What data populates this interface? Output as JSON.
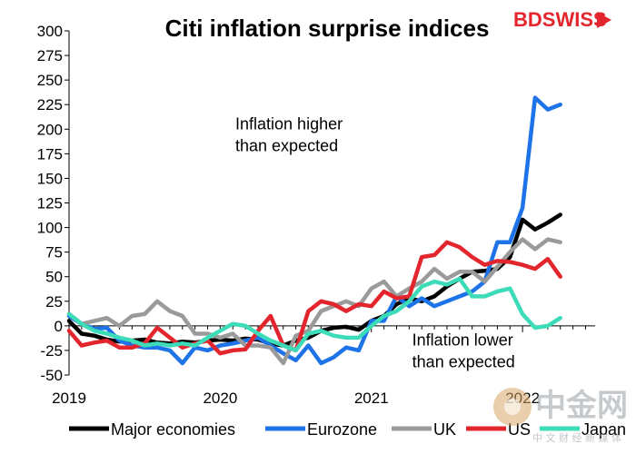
{
  "brand": {
    "logo_text": "BDSWISS",
    "watermark_main": "中金网",
    "watermark_sub": "中 文 财 经 新 媒 体"
  },
  "chart_data": {
    "type": "line",
    "title": "Citi inflation surprise indices",
    "xlabel": "",
    "ylabel": "",
    "ylim": [
      -50,
      300
    ],
    "yticks": [
      300,
      275,
      250,
      225,
      200,
      175,
      150,
      125,
      100,
      75,
      50,
      25,
      0,
      -25,
      -50
    ],
    "xlim": [
      2019.0,
      2022.48
    ],
    "xticks": [
      {
        "value": 2019,
        "label": "2019"
      },
      {
        "value": 2020,
        "label": "2020"
      },
      {
        "value": 2021,
        "label": "2021"
      },
      {
        "value": 2022,
        "label": "2022"
      }
    ],
    "grid": false,
    "annotations": [
      {
        "lines": [
          "Inflation higher",
          "than expected"
        ],
        "x": 2020.1,
        "y": 200
      },
      {
        "lines": [
          "Inflation lower",
          "than expected"
        ],
        "x": 2021.27,
        "y": -20
      }
    ],
    "legend_position": "bottom",
    "series": [
      {
        "name": "Major economies",
        "color": "#000000",
        "x": [
          2019.0,
          2019.083,
          2019.167,
          2019.25,
          2019.333,
          2019.417,
          2019.5,
          2019.583,
          2019.667,
          2019.75,
          2019.833,
          2019.917,
          2020.0,
          2020.083,
          2020.167,
          2020.25,
          2020.333,
          2020.417,
          2020.5,
          2020.583,
          2020.667,
          2020.75,
          2020.833,
          2020.917,
          2021.0,
          2021.083,
          2021.167,
          2021.25,
          2021.333,
          2021.417,
          2021.5,
          2021.583,
          2021.667,
          2021.75,
          2021.833,
          2021.917,
          2022.0,
          2022.083,
          2022.167,
          2022.25
        ],
        "values": [
          5,
          -8,
          -10,
          -14,
          -16,
          -15,
          -14,
          -17,
          -18,
          -16,
          -17,
          -15,
          -14,
          -15,
          -13,
          -14,
          -18,
          -20,
          -15,
          -12,
          -5,
          -2,
          -1,
          -4,
          5,
          10,
          22,
          28,
          25,
          30,
          40,
          48,
          55,
          56,
          58,
          70,
          108,
          98,
          105,
          113
        ]
      },
      {
        "name": "Eurozone",
        "color": "#1e73e8",
        "x": [
          2019.0,
          2019.083,
          2019.167,
          2019.25,
          2019.333,
          2019.417,
          2019.5,
          2019.583,
          2019.667,
          2019.75,
          2019.833,
          2019.917,
          2020.0,
          2020.083,
          2020.167,
          2020.25,
          2020.333,
          2020.417,
          2020.5,
          2020.583,
          2020.667,
          2020.75,
          2020.833,
          2020.917,
          2021.0,
          2021.083,
          2021.167,
          2021.25,
          2021.333,
          2021.417,
          2021.5,
          2021.583,
          2021.667,
          2021.75,
          2021.833,
          2021.917,
          2022.0,
          2022.083,
          2022.167,
          2022.25
        ],
        "values": [
          10,
          2,
          -3,
          -2,
          -15,
          -20,
          -22,
          -22,
          -25,
          -38,
          -22,
          -25,
          -20,
          -18,
          -15,
          -12,
          -20,
          -28,
          -35,
          -20,
          -38,
          -32,
          -22,
          -25,
          5,
          5,
          30,
          20,
          28,
          20,
          25,
          30,
          35,
          45,
          85,
          85,
          120,
          232,
          220,
          225
        ]
      },
      {
        "name": "UK",
        "color": "#9a9a9a",
        "x": [
          2019.0,
          2019.083,
          2019.167,
          2019.25,
          2019.333,
          2019.417,
          2019.5,
          2019.583,
          2019.667,
          2019.75,
          2019.833,
          2019.917,
          2020.0,
          2020.083,
          2020.167,
          2020.25,
          2020.333,
          2020.417,
          2020.5,
          2020.583,
          2020.667,
          2020.75,
          2020.833,
          2020.917,
          2021.0,
          2021.083,
          2021.167,
          2021.25,
          2021.333,
          2021.417,
          2021.5,
          2021.583,
          2021.667,
          2021.75,
          2021.833,
          2021.917,
          2022.0,
          2022.083,
          2022.167,
          2022.25
        ],
        "values": [
          12,
          2,
          5,
          8,
          0,
          10,
          12,
          25,
          15,
          10,
          -8,
          -8,
          -12,
          -8,
          -20,
          -20,
          -22,
          -38,
          -10,
          -5,
          15,
          20,
          25,
          20,
          38,
          45,
          30,
          38,
          45,
          58,
          48,
          55,
          55,
          45,
          60,
          75,
          88,
          78,
          88,
          85
        ]
      },
      {
        "name": "US",
        "color": "#e3262e",
        "x": [
          2019.0,
          2019.083,
          2019.167,
          2019.25,
          2019.333,
          2019.417,
          2019.5,
          2019.583,
          2019.667,
          2019.75,
          2019.833,
          2019.917,
          2020.0,
          2020.083,
          2020.167,
          2020.25,
          2020.333,
          2020.417,
          2020.5,
          2020.583,
          2020.667,
          2020.75,
          2020.833,
          2020.917,
          2021.0,
          2021.083,
          2021.167,
          2021.25,
          2021.333,
          2021.417,
          2021.5,
          2021.583,
          2021.667,
          2021.75,
          2021.833,
          2021.917,
          2022.0,
          2022.083,
          2022.167,
          2022.25
        ],
        "values": [
          -5,
          -20,
          -17,
          -15,
          -22,
          -22,
          -18,
          -2,
          -12,
          -22,
          -18,
          -15,
          -28,
          -25,
          -24,
          -5,
          10,
          -20,
          -25,
          15,
          25,
          22,
          15,
          22,
          20,
          35,
          28,
          30,
          70,
          72,
          85,
          80,
          70,
          62,
          66,
          65,
          62,
          58,
          68,
          50
        ]
      },
      {
        "name": "Japan",
        "color": "#3ddcb8",
        "x": [
          2019.0,
          2019.083,
          2019.167,
          2019.25,
          2019.333,
          2019.417,
          2019.5,
          2019.583,
          2019.667,
          2019.75,
          2019.833,
          2019.917,
          2020.0,
          2020.083,
          2020.167,
          2020.25,
          2020.333,
          2020.417,
          2020.5,
          2020.583,
          2020.667,
          2020.75,
          2020.833,
          2020.917,
          2021.0,
          2021.083,
          2021.167,
          2021.25,
          2021.333,
          2021.417,
          2021.5,
          2021.583,
          2021.667,
          2021.75,
          2021.833,
          2021.917,
          2022.0,
          2022.083,
          2022.167,
          2022.25
        ],
        "values": [
          12,
          2,
          -5,
          -8,
          -12,
          -15,
          -20,
          -18,
          -20,
          -18,
          -20,
          -12,
          -5,
          2,
          0,
          -8,
          -15,
          -20,
          -25,
          -8,
          -5,
          -10,
          -12,
          -12,
          0,
          10,
          15,
          25,
          40,
          45,
          42,
          48,
          30,
          30,
          35,
          38,
          12,
          -2,
          0,
          8
        ]
      }
    ]
  }
}
